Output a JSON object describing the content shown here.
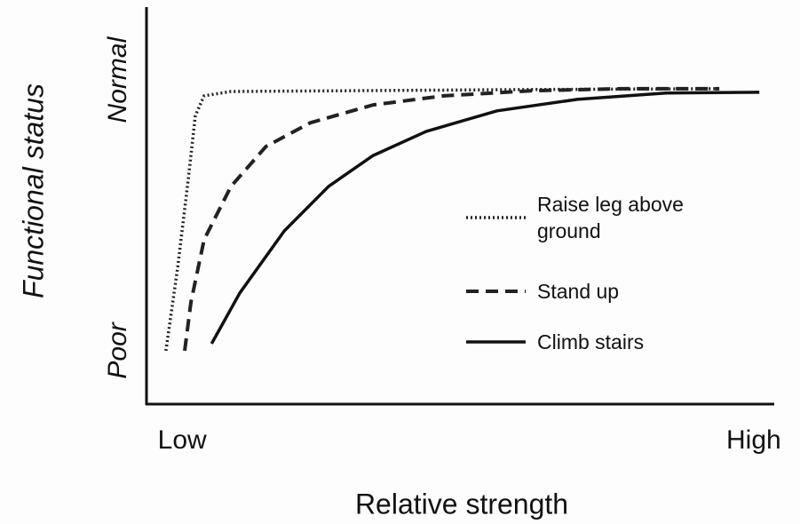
{
  "chart_data": {
    "type": "line",
    "xlabel": "Relative strength",
    "ylabel": "Functional status",
    "xlim": [
      0,
      100
    ],
    "ylim": [
      0,
      100
    ],
    "xticks": [
      {
        "value": 5.7,
        "label": "Low"
      },
      {
        "value": 97,
        "label": "High"
      }
    ],
    "yticks": [
      {
        "value": 13.5,
        "label": "Poor"
      },
      {
        "value": 82,
        "label": "Normal"
      }
    ],
    "series": [
      {
        "name": "Raise leg above ground",
        "color": "#222",
        "style": "dotted",
        "x": [
          3.1,
          5.0,
          6.7,
          7.8,
          9.2,
          13.5,
          33.3,
          61.7,
          91.5
        ],
        "values": [
          13.5,
          34.8,
          57.3,
          73.0,
          78.0,
          79.1,
          79.3,
          79.6,
          79.8
        ]
      },
      {
        "name": "Stand up",
        "color": "#222",
        "style": "dashed",
        "x": [
          6.1,
          7.1,
          9.2,
          13.5,
          19.1,
          26.2,
          36.2,
          47.5,
          61.7,
          75.9,
          91.5
        ],
        "values": [
          13.5,
          25.8,
          41.6,
          55.1,
          65.2,
          71.2,
          75.7,
          78.0,
          79.3,
          79.8,
          79.8
        ]
      },
      {
        "name": "Climb stairs",
        "color": "#111",
        "style": "solid",
        "x": [
          10.4,
          14.9,
          22.0,
          29.1,
          36.2,
          44.7,
          56.0,
          68.8,
          83.0,
          97.9
        ],
        "values": [
          15.3,
          28.1,
          43.8,
          55.1,
          62.9,
          69.0,
          74.2,
          77.1,
          78.7,
          78.9
        ]
      }
    ]
  }
}
